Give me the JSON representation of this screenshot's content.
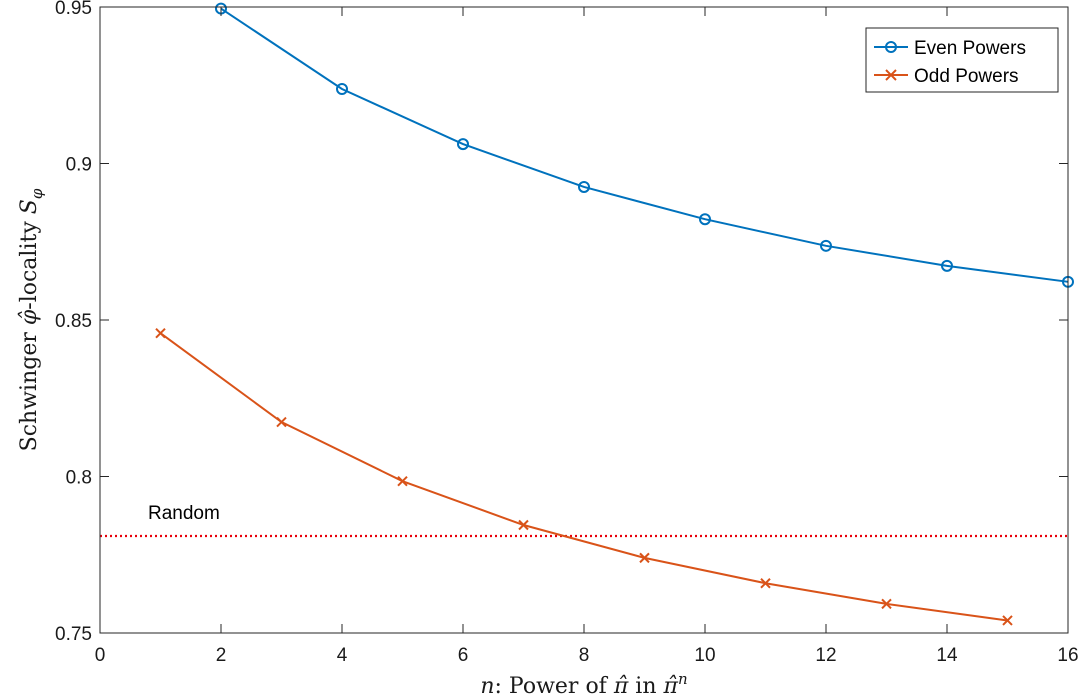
{
  "chart_data": {
    "type": "line",
    "title": "",
    "xlabel": {
      "var": "n",
      "text": ": Power of ",
      "pi": "π̂",
      "in": " in ",
      "pi2": "π̂",
      "sup": "n"
    },
    "ylabel": {
      "text": "Schwinger ",
      "phi": "φ̂",
      "text2": "-locality ",
      "S": "S",
      "sub": "φ"
    },
    "xlim": [
      0,
      16
    ],
    "ylim": [
      0.75,
      0.95
    ],
    "xticks": [
      0,
      2,
      4,
      6,
      8,
      10,
      12,
      14,
      16
    ],
    "yticks": [
      0.75,
      0.8,
      0.85,
      0.9,
      0.95
    ],
    "xtick_labels": [
      "0",
      "2",
      "4",
      "6",
      "8",
      "10",
      "12",
      "14",
      "16"
    ],
    "ytick_labels": [
      "0.75",
      "0.8",
      "0.85",
      "0.9",
      "0.95"
    ],
    "grid": false,
    "legend_position": "top-right",
    "series": [
      {
        "name": "Even Powers",
        "color": "#0072BD",
        "marker": "circle",
        "x": [
          2,
          4,
          6,
          8,
          10,
          12,
          14,
          16
        ],
        "y": [
          0.9495,
          0.9238,
          0.9062,
          0.8925,
          0.8822,
          0.8737,
          0.8673,
          0.8622
        ]
      },
      {
        "name": "Odd Powers",
        "color": "#D95319",
        "marker": "x",
        "x": [
          1,
          3,
          5,
          7,
          9,
          11,
          13,
          15
        ],
        "y": [
          0.8458,
          0.8174,
          0.7985,
          0.7845,
          0.774,
          0.7659,
          0.7593,
          0.754
        ]
      }
    ],
    "reference_line": {
      "label": "Random",
      "y": 0.781,
      "color": "#E8000B",
      "style": "dotted"
    }
  }
}
